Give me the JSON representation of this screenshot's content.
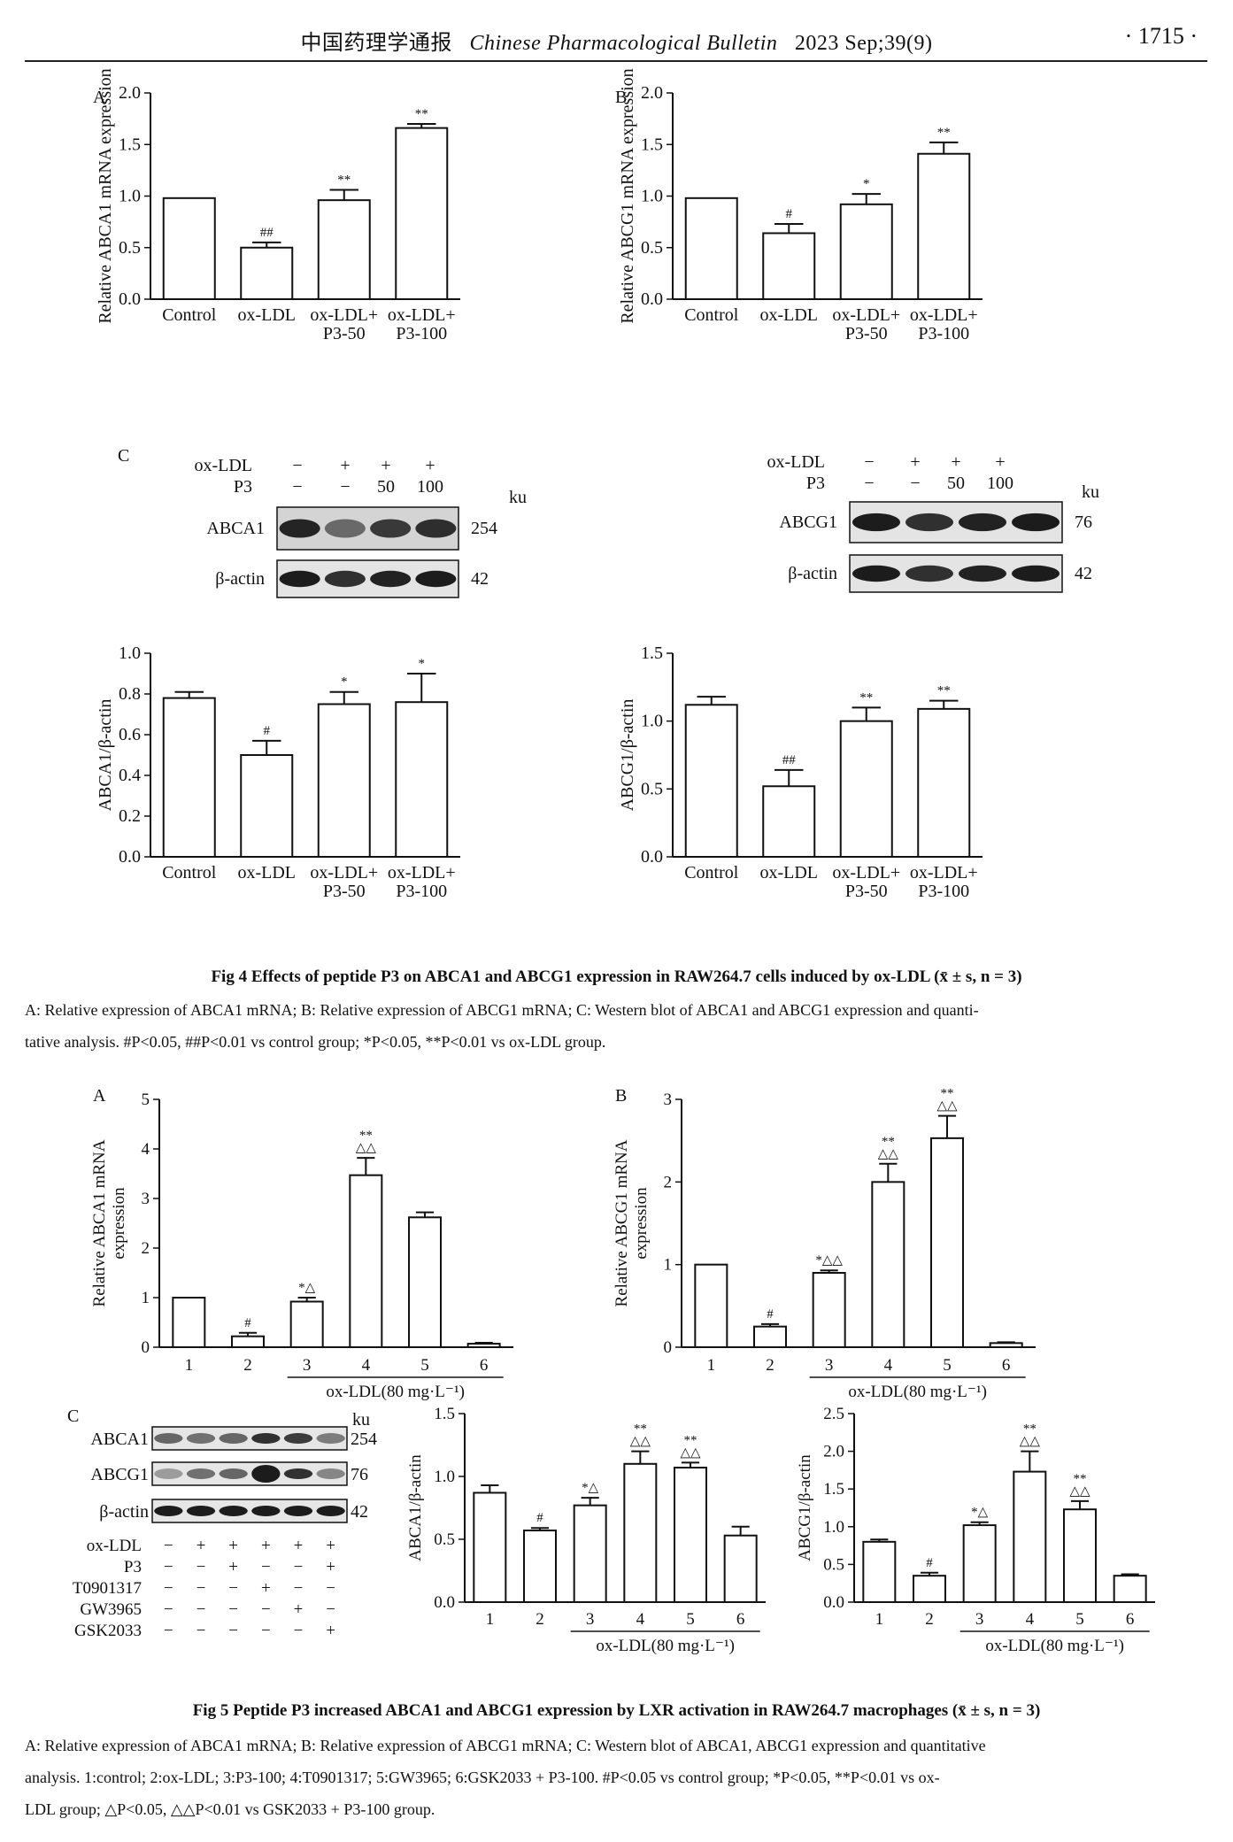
{
  "header": {
    "cn": "中国药理学通报",
    "en": "Chinese Pharmacological Bulletin",
    "issue": "2023 Sep;39(9)",
    "page": "· 1715 ·"
  },
  "fig4": {
    "caption_title": "Fig 4   Effects of peptide P3 on ABCA1 and ABCG1 expression in RAW264.7 cells induced by ox-LDL (x̄ ± s, n = 3)",
    "caption_line1": "A: Relative expression of ABCA1 mRNA; B: Relative expression of ABCG1 mRNA; C: Western blot of ABCA1 and ABCG1 expression and quanti-",
    "caption_line2": "tative analysis. #P<0.05, ##P<0.01 vs control group; *P<0.05, **P<0.01 vs ox-LDL group.",
    "blot": {
      "panel_label": "C",
      "row_oxldl": "ox-LDL",
      "row_p3": "P3",
      "oxldl_signs": [
        "−",
        "+",
        "+",
        "+"
      ],
      "p3_signs": [
        "−",
        "−",
        "50",
        "100"
      ],
      "unit": "ku",
      "left_bands": [
        {
          "label": "ABCA1",
          "size": "254"
        },
        {
          "label": "β-actin",
          "size": "42"
        }
      ],
      "right_bands": [
        {
          "label": "ABCG1",
          "size": "76"
        },
        {
          "label": "β-actin",
          "size": "42"
        }
      ]
    }
  },
  "fig5": {
    "caption_title": "Fig 5   Peptide P3 increased ABCA1 and ABCG1 expression by LXR activation in RAW264.7 macrophages (x̄ ± s, n = 3)",
    "caption_line1": "A: Relative expression of ABCA1 mRNA; B: Relative expression of ABCG1 mRNA; C: Western blot of ABCA1, ABCG1 expression and quantitative",
    "caption_line2": "analysis. 1:control; 2:ox-LDL; 3:P3-100; 4:T0901317; 5:GW3965; 6:GSK2033 + P3-100. #P<0.05 vs control group; *P<0.05, **P<0.01 vs ox-",
    "caption_line3": "LDL group; △P<0.05, △△P<0.01 vs GSK2033 + P3-100 group.",
    "blot": {
      "panel_label": "C",
      "unit": "ku",
      "bands": [
        {
          "label": "ABCA1",
          "size": "254"
        },
        {
          "label": "ABCG1",
          "size": "76"
        },
        {
          "label": "β-actin",
          "size": "42"
        }
      ],
      "treatments": [
        {
          "label": "ox-LDL",
          "signs": [
            "−",
            "+",
            "+",
            "+",
            "+",
            "+"
          ]
        },
        {
          "label": "P3",
          "signs": [
            "−",
            "−",
            "+",
            "−",
            "−",
            "+"
          ]
        },
        {
          "label": "T0901317",
          "signs": [
            "−",
            "−",
            "−",
            "+",
            "−",
            "−"
          ]
        },
        {
          "label": "GW3965",
          "signs": [
            "−",
            "−",
            "−",
            "−",
            "+",
            "−"
          ]
        },
        {
          "label": "GSK2033",
          "signs": [
            "−",
            "−",
            "−",
            "−",
            "−",
            "+"
          ]
        }
      ]
    }
  },
  "chart_data": [
    {
      "id": "f4a",
      "type": "bar",
      "panel": "A",
      "categories": [
        "Control",
        "ox-LDL",
        "ox-LDL+\nP3-50",
        "ox-LDL+\nP3-100"
      ],
      "values": [
        0.98,
        0.5,
        0.96,
        1.66
      ],
      "errors": [
        0,
        0.05,
        0.1,
        0.04
      ],
      "annotations": [
        "",
        "##",
        "**",
        "**"
      ],
      "ylabel": "Relative ABCA1 mRNA expression",
      "ylim": [
        0,
        2.0
      ],
      "yticks": [
        0.0,
        0.5,
        1.0,
        1.5,
        2.0
      ],
      "tick_decimals": 1
    },
    {
      "id": "f4b",
      "type": "bar",
      "panel": "B",
      "categories": [
        "Control",
        "ox-LDL",
        "ox-LDL+\nP3-50",
        "ox-LDL+\nP3-100"
      ],
      "values": [
        0.98,
        0.64,
        0.92,
        1.41
      ],
      "errors": [
        0,
        0.09,
        0.1,
        0.11
      ],
      "annotations": [
        "",
        "#",
        "*",
        "**"
      ],
      "ylabel": "Relative ABCG1 mRNA expression",
      "ylim": [
        0,
        2.0
      ],
      "yticks": [
        0.0,
        0.5,
        1.0,
        1.5,
        2.0
      ],
      "tick_decimals": 1
    },
    {
      "id": "f4c1",
      "type": "bar",
      "panel": "",
      "categories": [
        "Control",
        "ox-LDL",
        "ox-LDL+\nP3-50",
        "ox-LDL+\nP3-100"
      ],
      "values": [
        0.78,
        0.5,
        0.75,
        0.76
      ],
      "errors": [
        0.03,
        0.07,
        0.06,
        0.14
      ],
      "annotations": [
        "",
        "#",
        "*",
        "*"
      ],
      "ylabel": "ABCA1/β-actin",
      "ylim": [
        0,
        1.0
      ],
      "yticks": [
        0.0,
        0.2,
        0.4,
        0.6,
        0.8,
        1.0
      ],
      "tick_decimals": 1
    },
    {
      "id": "f4c2",
      "type": "bar",
      "panel": "",
      "categories": [
        "Control",
        "ox-LDL",
        "ox-LDL+\nP3-50",
        "ox-LDL+\nP3-100"
      ],
      "values": [
        1.12,
        0.52,
        1.0,
        1.09
      ],
      "errors": [
        0.06,
        0.12,
        0.1,
        0.06
      ],
      "annotations": [
        "",
        "##",
        "**",
        "**"
      ],
      "ylabel": "ABCG1/β-actin",
      "ylim": [
        0,
        1.5
      ],
      "yticks": [
        0.0,
        0.5,
        1.0,
        1.5
      ],
      "tick_decimals": 1
    },
    {
      "id": "f5a",
      "type": "bar",
      "panel": "A",
      "categories": [
        "1",
        "2",
        "3",
        "4",
        "5",
        "6"
      ],
      "values": [
        1.0,
        0.22,
        0.92,
        3.47,
        2.62,
        0.07
      ],
      "errors": [
        0,
        0.07,
        0.08,
        0.35,
        0.1,
        0.02
      ],
      "annotations": [
        "",
        "#",
        "*△",
        "**\n△△",
        "",
        ""
      ],
      "ylabel": "Relative ABCA1 mRNA\nexpression",
      "xgroup": "ox-LDL(80 mg·L⁻¹)",
      "ylim": [
        0,
        5
      ],
      "yticks": [
        0,
        1,
        2,
        3,
        4,
        5
      ],
      "tick_decimals": 0
    },
    {
      "id": "f5b",
      "type": "bar",
      "panel": "B",
      "categories": [
        "1",
        "2",
        "3",
        "4",
        "5",
        "6"
      ],
      "values": [
        1.0,
        0.25,
        0.9,
        2.0,
        2.53,
        0.05
      ],
      "errors": [
        0,
        0.03,
        0.03,
        0.22,
        0.27,
        0.01
      ],
      "annotations": [
        "",
        "#",
        "*△△",
        "**\n△△",
        "**\n△△",
        ""
      ],
      "ylabel": "Relative ABCG1 mRNA\nexpression",
      "xgroup": "ox-LDL(80 mg·L⁻¹)",
      "ylim": [
        0,
        3
      ],
      "yticks": [
        0,
        1,
        2,
        3
      ],
      "tick_decimals": 0
    },
    {
      "id": "f5c1",
      "type": "bar",
      "panel": "",
      "categories": [
        "1",
        "2",
        "3",
        "4",
        "5",
        "6"
      ],
      "values": [
        0.87,
        0.57,
        0.77,
        1.1,
        1.07,
        0.53
      ],
      "errors": [
        0.06,
        0.02,
        0.06,
        0.1,
        0.04,
        0.07
      ],
      "annotations": [
        "",
        "#",
        "*△",
        "**\n△△",
        "**\n△△",
        ""
      ],
      "ylabel": "ABCA1/β-actin",
      "xgroup": "ox-LDL(80 mg·L⁻¹)",
      "ylim": [
        0,
        1.5
      ],
      "yticks": [
        0.0,
        0.5,
        1.0,
        1.5
      ],
      "tick_decimals": 1
    },
    {
      "id": "f5c2",
      "type": "bar",
      "panel": "",
      "categories": [
        "1",
        "2",
        "3",
        "4",
        "5",
        "6"
      ],
      "values": [
        0.8,
        0.35,
        1.02,
        1.73,
        1.23,
        0.35
      ],
      "errors": [
        0.03,
        0.04,
        0.04,
        0.27,
        0.11,
        0.02
      ],
      "annotations": [
        "",
        "#",
        "*△",
        "**\n△△",
        "**\n△△",
        ""
      ],
      "ylabel": "ABCG1/β-actin",
      "xgroup": "ox-LDL(80 mg·L⁻¹)",
      "ylim": [
        0,
        2.5
      ],
      "yticks": [
        0.0,
        0.5,
        1.0,
        1.5,
        2.0,
        2.5
      ],
      "tick_decimals": 1
    }
  ]
}
